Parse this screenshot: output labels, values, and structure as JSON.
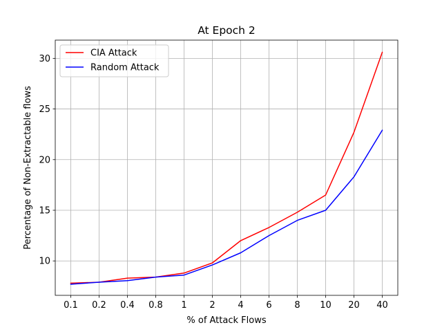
{
  "chart_data": {
    "type": "line",
    "title": "At Epoch 2",
    "xlabel": "% of Attack Flows",
    "ylabel": "Percentage of Non-Extractable flows",
    "categories": [
      "0.1",
      "0.2",
      "0.4",
      "0.8",
      "1",
      "2",
      "4",
      "6",
      "8",
      "10",
      "20",
      "40"
    ],
    "series": [
      {
        "name": "CIA Attack",
        "color": "#ff0000",
        "values": [
          7.8,
          7.9,
          8.3,
          8.4,
          8.8,
          9.8,
          12.0,
          13.3,
          14.8,
          16.5,
          22.7,
          30.6
        ]
      },
      {
        "name": "Random Attack",
        "color": "#0000ff",
        "values": [
          7.7,
          7.9,
          8.05,
          8.4,
          8.6,
          9.6,
          10.8,
          12.5,
          14.0,
          15.0,
          18.3,
          22.9
        ]
      }
    ],
    "ylim": [
      6.6,
      31.8
    ],
    "yticks": [
      "10",
      "15",
      "20",
      "25",
      "30"
    ],
    "grid": true,
    "legend_position": "upper left"
  }
}
